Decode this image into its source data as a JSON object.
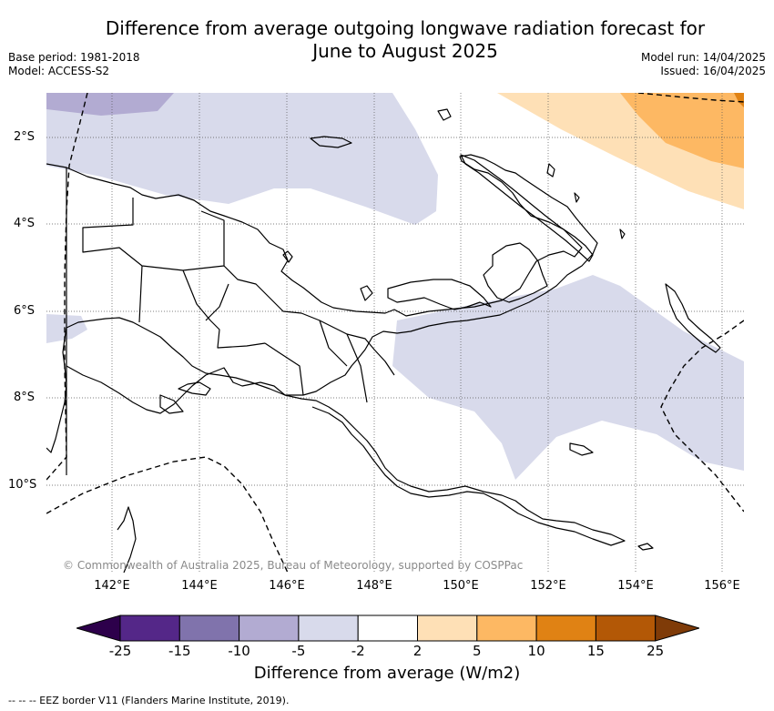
{
  "title": {
    "line1": "Difference from average outgoing longwave radiation forecast for",
    "line2": "June to August 2025"
  },
  "meta": {
    "base_period": "Base period: 1981-2018",
    "model": "Model: ACCESS-S2",
    "model_run": "Model run: 14/04/2025",
    "issued": "Issued: 16/04/2025"
  },
  "map": {
    "lat_labels": [
      "2°S",
      "4°S",
      "6°S",
      "8°S",
      "10°S"
    ],
    "lon_labels": [
      "142°E",
      "144°E",
      "146°E",
      "148°E",
      "150°E",
      "152°E",
      "154°E",
      "156°E"
    ],
    "copyright": "© Commonwealth of Australia 2025, Bureau of Meteorology, supported by COSPPac"
  },
  "colorbar": {
    "ticks": [
      "-25",
      "-15",
      "-10",
      "-5",
      "-2",
      "2",
      "5",
      "10",
      "15",
      "25"
    ],
    "colors": [
      "#2d004b",
      "#542788",
      "#8073ac",
      "#b2abd2",
      "#d8daeb",
      "#ffffff",
      "#fee0b6",
      "#fdb863",
      "#e08214",
      "#b35806",
      "#7f3b08"
    ],
    "label": "Difference from average (W/m2)"
  },
  "footer": "--  --  -- EEZ border V11 (Flanders Marine Institute, 2019)."
}
